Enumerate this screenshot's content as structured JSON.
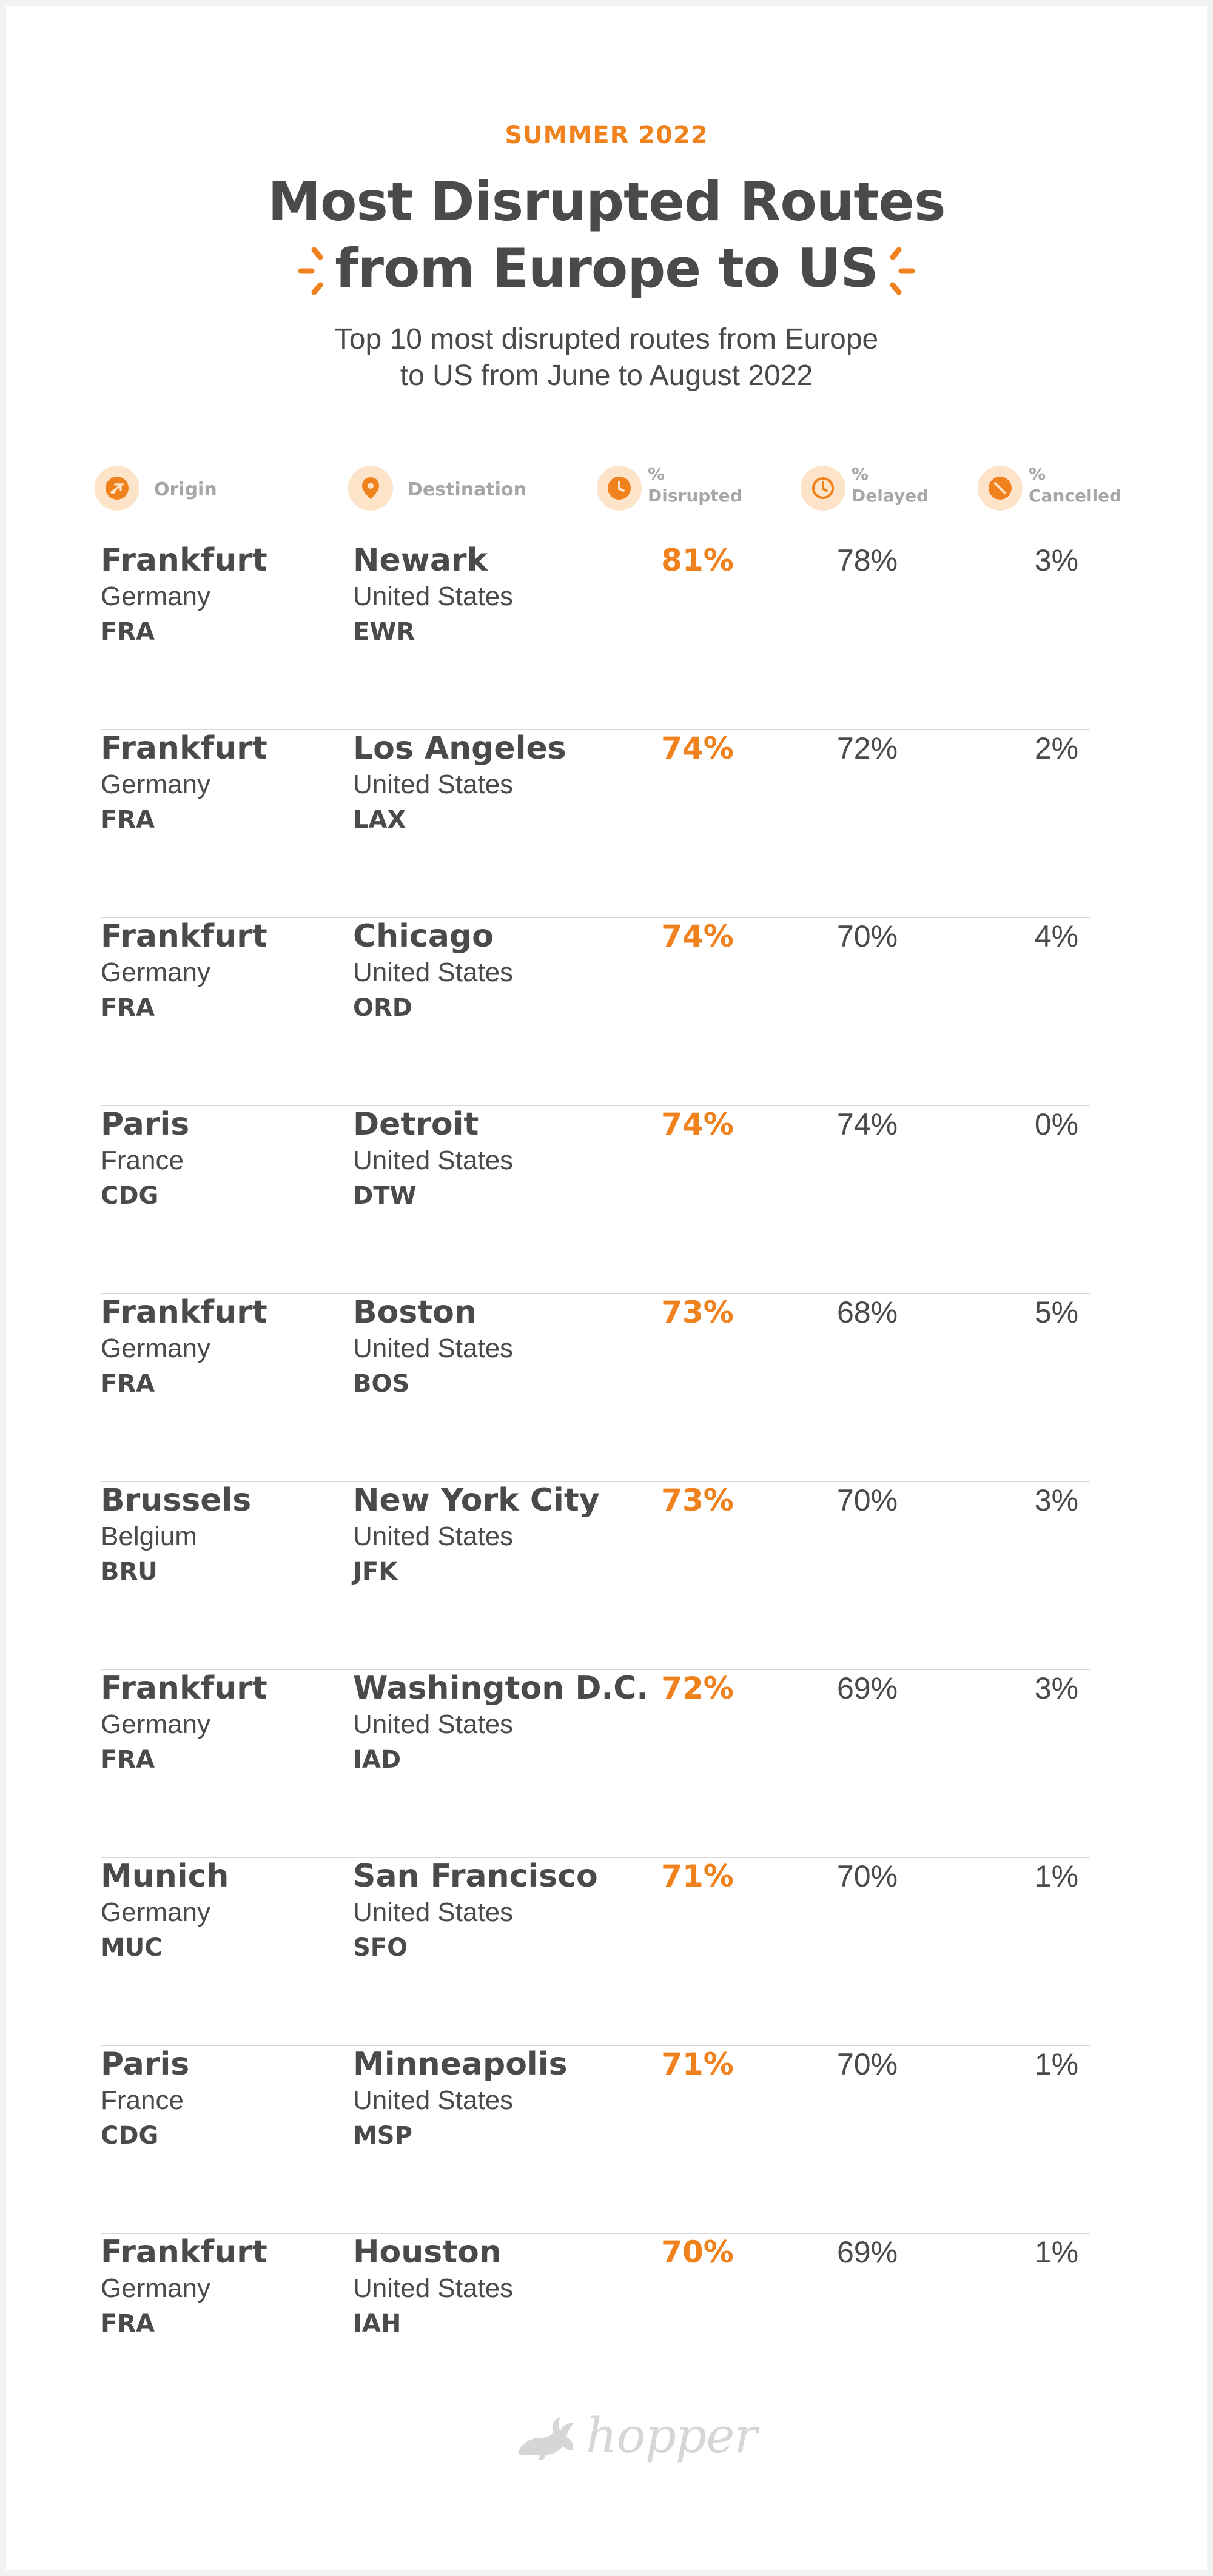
{
  "eyebrow": "SUMMER 2022",
  "title": {
    "line1": "Most Disrupted Routes",
    "line2": "from Europe to US"
  },
  "subtitle": {
    "line1": "Top 10 most disrupted routes from Europe",
    "line2": "to US from June to August 2022"
  },
  "headers": {
    "origin": "Origin",
    "destination": "Destination",
    "disrupted_pct": "%",
    "disrupted": "Disrupted",
    "delayed_pct": "%",
    "delayed": "Delayed",
    "cancelled_pct": "%",
    "cancelled": "Cancelled"
  },
  "icons": {
    "origin": "plane-icon",
    "destination": "map-pin-icon",
    "disrupted": "clock-filled-icon",
    "delayed": "clock-outline-icon",
    "cancelled": "cancelled-icon"
  },
  "colors": {
    "accent": "#f0821e",
    "text": "#4a4a4a",
    "muted": "#a7a7a7",
    "icon_bg": "#fde3c8"
  },
  "routes": [
    {
      "origin_city": "Frankfurt",
      "origin_country": "Germany",
      "origin_code": "FRA",
      "dest_city": "Newark",
      "dest_country": "United States",
      "dest_code": "EWR",
      "disrupted": "81%",
      "delayed": "78%",
      "cancelled": "3%"
    },
    {
      "origin_city": "Frankfurt",
      "origin_country": "Germany",
      "origin_code": "FRA",
      "dest_city": "Los Angeles",
      "dest_country": "United States",
      "dest_code": "LAX",
      "disrupted": "74%",
      "delayed": "72%",
      "cancelled": "2%"
    },
    {
      "origin_city": "Frankfurt",
      "origin_country": "Germany",
      "origin_code": "FRA",
      "dest_city": "Chicago",
      "dest_country": "United States",
      "dest_code": "ORD",
      "disrupted": "74%",
      "delayed": "70%",
      "cancelled": "4%"
    },
    {
      "origin_city": "Paris",
      "origin_country": "France",
      "origin_code": "CDG",
      "dest_city": "Detroit",
      "dest_country": "United States",
      "dest_code": "DTW",
      "disrupted": "74%",
      "delayed": "74%",
      "cancelled": "0%"
    },
    {
      "origin_city": "Frankfurt",
      "origin_country": "Germany",
      "origin_code": "FRA",
      "dest_city": "Boston",
      "dest_country": "United States",
      "dest_code": "BOS",
      "disrupted": "73%",
      "delayed": "68%",
      "cancelled": "5%"
    },
    {
      "origin_city": "Brussels",
      "origin_country": "Belgium",
      "origin_code": "BRU",
      "dest_city": "New York City",
      "dest_country": "United States",
      "dest_code": "JFK",
      "disrupted": "73%",
      "delayed": "70%",
      "cancelled": "3%"
    },
    {
      "origin_city": "Frankfurt",
      "origin_country": "Germany",
      "origin_code": "FRA",
      "dest_city": "Washington D.C.",
      "dest_country": "United States",
      "dest_code": "IAD",
      "disrupted": "72%",
      "delayed": "69%",
      "cancelled": "3%"
    },
    {
      "origin_city": "Munich",
      "origin_country": "Germany",
      "origin_code": "MUC",
      "dest_city": "San Francisco",
      "dest_country": "United States",
      "dest_code": "SFO",
      "disrupted": "71%",
      "delayed": "70%",
      "cancelled": "1%"
    },
    {
      "origin_city": "Paris",
      "origin_country": "France",
      "origin_code": "CDG",
      "dest_city": "Minneapolis",
      "dest_country": "United States",
      "dest_code": "MSP",
      "disrupted": "71%",
      "delayed": "70%",
      "cancelled": "1%"
    },
    {
      "origin_city": "Frankfurt",
      "origin_country": "Germany",
      "origin_code": "FRA",
      "dest_city": "Houston",
      "dest_country": "United States",
      "dest_code": "IAH",
      "disrupted": "70%",
      "delayed": "69%",
      "cancelled": "1%"
    }
  ],
  "footer": {
    "logo_text": "hopper",
    "logo_icon": "bunny-icon"
  }
}
